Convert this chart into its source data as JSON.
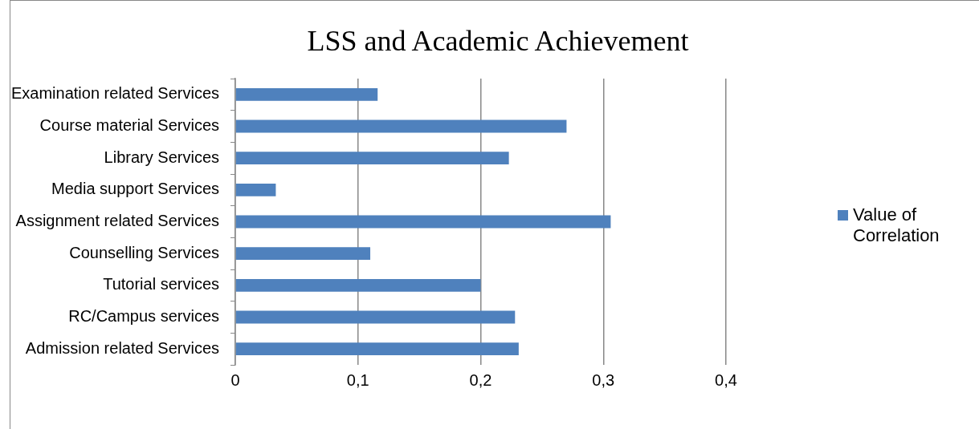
{
  "chart_data": {
    "type": "bar",
    "orientation": "horizontal",
    "title": "LSS and Academic Achievement",
    "categories": [
      "Examination related Services",
      "Course material Services",
      "Library Services",
      "Media support Services",
      "Assignment related Services",
      "Counselling Services",
      "Tutorial services",
      "RC/Campus services",
      "Admission related Services"
    ],
    "series": [
      {
        "name": "Value of Correlation",
        "color": "#4f81bd",
        "values": [
          0.116,
          0.27,
          0.223,
          0.033,
          0.306,
          0.11,
          0.2,
          0.228,
          0.231
        ]
      }
    ],
    "xlim": [
      0,
      0.4
    ],
    "xticks": [
      {
        "value": 0,
        "label": "0"
      },
      {
        "value": 0.1,
        "label": "0,1"
      },
      {
        "value": 0.2,
        "label": "0,2"
      },
      {
        "value": 0.3,
        "label": "0,3"
      },
      {
        "value": 0.4,
        "label": "0,4"
      }
    ],
    "grid": "x",
    "legend": "right"
  }
}
